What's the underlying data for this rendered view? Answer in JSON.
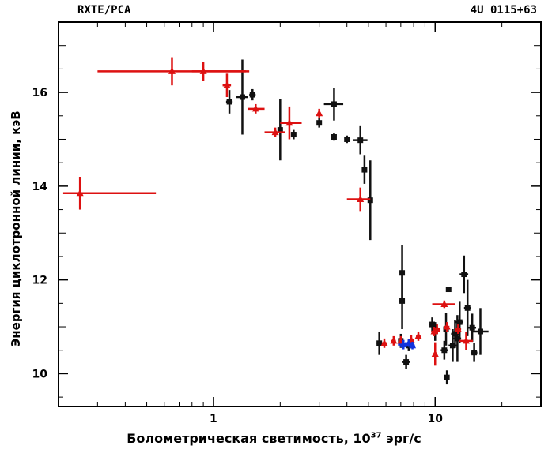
{
  "header": {
    "left": "RXTE/PCA",
    "right": "4U 0115+63"
  },
  "labels": {
    "ylabel": "Энергия циклотронной линии, кэВ",
    "xlabel_prefix": "Болометрическая светимость, 10",
    "xlabel_exp": "37",
    "xlabel_unit": " эрг/с"
  },
  "chart_data": {
    "type": "scatter",
    "x_scale": "log",
    "xlim": [
      0.2,
      30
    ],
    "ylim": [
      9.3,
      17.5
    ],
    "x_ticks": [
      1,
      10
    ],
    "y_ticks": [
      10,
      12,
      14,
      16
    ],
    "xlabel": "Болометрическая светимость, 10^37 эрг/с",
    "ylabel": "Энергия циклотронной линии, кэВ",
    "colors": {
      "black": "#111111",
      "red": "#dd1111",
      "blue": "#1133dd"
    },
    "series": [
      {
        "color": "black",
        "points": [
          {
            "x": 1.18,
            "y": 15.8,
            "xerr": [
              0.04,
              0.04
            ],
            "yerr": 0.25
          },
          {
            "x": 1.35,
            "y": 15.9,
            "xerr": [
              0.08,
              0.08
            ],
            "yerr": 0.8
          },
          {
            "x": 1.5,
            "y": 15.95,
            "xerr": [
              0.05,
              0.05
            ],
            "yerr": 0.12
          },
          {
            "x": 2.0,
            "y": 15.2,
            "xerr": [
              0.05,
              0.05
            ],
            "yerr": 0.65
          },
          {
            "x": 2.3,
            "y": 15.1,
            "xerr": [
              0.06,
              0.06
            ],
            "yerr": 0.1
          },
          {
            "x": 3.0,
            "y": 15.35,
            "xerr": [
              0.05,
              0.05
            ],
            "yerr": 0.1
          },
          {
            "x": 3.5,
            "y": 15.75,
            "xerr": [
              0.35,
              0.35
            ],
            "yerr": 0.35
          },
          {
            "x": 3.5,
            "y": 15.05,
            "xerr": [
              0.05,
              0.05
            ],
            "yerr": 0.08
          },
          {
            "x": 4.0,
            "y": 15.0,
            "xerr": [
              0.05,
              0.05
            ],
            "yerr": 0.08
          },
          {
            "x": 4.6,
            "y": 14.98,
            "xerr": [
              0.35,
              0.35
            ],
            "yerr": 0.3
          },
          {
            "x": 4.8,
            "y": 14.35,
            "xerr": [
              0.05,
              0.05
            ],
            "yerr": 0.3
          },
          {
            "x": 5.1,
            "y": 13.7,
            "xerr": [
              0.05,
              0.05
            ],
            "yerr": 0.85
          },
          {
            "x": 5.6,
            "y": 10.65,
            "xerr": [
              0.15,
              0.15
            ],
            "yerr": 0.25
          },
          {
            "x": 7.1,
            "y": 12.15,
            "xerr": [
              0.15,
              0.15
            ],
            "yerr": 0.6
          },
          {
            "x": 7.1,
            "y": 11.55,
            "xerr": [
              0.2,
              0.2
            ],
            "yerr": 0.6
          },
          {
            "x": 7.0,
            "y": 10.7,
            "xerr": [
              0.15,
              0.15
            ],
            "yerr": 0.15
          },
          {
            "x": 7.4,
            "y": 10.25,
            "xerr": [
              0.3,
              0.3
            ],
            "yerr": 0.15
          },
          {
            "x": 7.6,
            "y": 10.6,
            "xerr": [
              0.2,
              0.2
            ],
            "yerr": 0.12
          },
          {
            "x": 9.7,
            "y": 11.05,
            "xerr": [
              0.3,
              0.3
            ],
            "yerr": 0.15
          },
          {
            "x": 10.0,
            "y": 10.9,
            "xerr": [
              0.15,
              0.15
            ],
            "yerr": 0.2
          },
          {
            "x": 11.0,
            "y": 10.5,
            "xerr": [
              0.4,
              0.4
            ],
            "yerr": 0.2
          },
          {
            "x": 11.2,
            "y": 10.95,
            "xerr": [
              0.3,
              0.3
            ],
            "yerr": 0.35
          },
          {
            "x": 11.3,
            "y": 9.92,
            "xerr": [
              0.3,
              0.3
            ],
            "yerr": 0.15
          },
          {
            "x": 11.5,
            "y": 11.8,
            "xerr": [
              0.15,
              0.15
            ],
            "yerr": 0.05
          },
          {
            "x": 12.0,
            "y": 10.6,
            "xerr": [
              0.5,
              0.5
            ],
            "yerr": 0.35
          },
          {
            "x": 12.3,
            "y": 10.85,
            "xerr": [
              0.5,
              0.5
            ],
            "yerr": 0.3
          },
          {
            "x": 12.6,
            "y": 10.75,
            "xerr": [
              0.5,
              0.5
            ],
            "yerr": 0.5
          },
          {
            "x": 12.9,
            "y": 11.1,
            "xerr": [
              0.5,
              0.5
            ],
            "yerr": 0.45
          },
          {
            "x": 13.5,
            "y": 12.12,
            "xerr": [
              0.6,
              0.6
            ],
            "yerr": 0.4
          },
          {
            "x": 14.0,
            "y": 11.4,
            "xerr": [
              0.5,
              0.5
            ],
            "yerr": 0.6
          },
          {
            "x": 14.7,
            "y": 10.98,
            "xerr": [
              0.6,
              0.6
            ],
            "yerr": 0.3
          },
          {
            "x": 15.0,
            "y": 10.45,
            "xerr": [
              0.5,
              0.5
            ],
            "yerr": 0.2
          },
          {
            "x": 16.0,
            "y": 10.9,
            "xerr": [
              1.4,
              1.4
            ],
            "yerr": 0.5
          }
        ]
      },
      {
        "color": "red",
        "points": [
          {
            "x": 0.25,
            "y": 13.85,
            "xerr": [
              0.04,
              0.3
            ],
            "yerr": 0.35
          },
          {
            "x": 0.65,
            "y": 16.45,
            "xerr": [
              0.35,
              0.8
            ],
            "yerr": 0.3
          },
          {
            "x": 0.9,
            "y": 16.45,
            "xerr": [
              0.1,
              0.5
            ],
            "yerr": 0.2
          },
          {
            "x": 1.15,
            "y": 16.15,
            "xerr": [
              0.05,
              0.05
            ],
            "yerr": 0.25
          },
          {
            "x": 1.55,
            "y": 15.65,
            "xerr": [
              0.12,
              0.15
            ],
            "yerr": 0.1
          },
          {
            "x": 1.9,
            "y": 15.15,
            "xerr": [
              0.2,
              0.2
            ],
            "yerr": 0.1
          },
          {
            "x": 2.2,
            "y": 15.35,
            "xerr": [
              0.2,
              0.3
            ],
            "yerr": 0.35
          },
          {
            "x": 3.0,
            "y": 15.55,
            "xerr": [
              0.05,
              0.05
            ],
            "yerr": 0.1
          },
          {
            "x": 4.6,
            "y": 13.72,
            "xerr": [
              0.6,
              0.5
            ],
            "yerr": 0.25
          },
          {
            "x": 5.9,
            "y": 10.65,
            "xerr": [
              0.15,
              0.15
            ],
            "yerr": 0.1
          },
          {
            "x": 6.5,
            "y": 10.7,
            "xerr": [
              0.15,
              0.15
            ],
            "yerr": 0.1
          },
          {
            "x": 7.0,
            "y": 10.7,
            "xerr": [
              0.15,
              0.15
            ],
            "yerr": 0.1
          },
          {
            "x": 7.8,
            "y": 10.72,
            "xerr": [
              0.2,
              0.2
            ],
            "yerr": 0.1
          },
          {
            "x": 8.4,
            "y": 10.8,
            "xerr": [
              0.2,
              0.2
            ],
            "yerr": 0.1
          },
          {
            "x": 9.9,
            "y": 10.9,
            "xerr": [
              0.3,
              0.3
            ],
            "yerr": 0.1
          },
          {
            "x": 10.2,
            "y": 10.95,
            "xerr": [
              0.3,
              0.3
            ],
            "yerr": 0.1
          },
          {
            "x": 10.0,
            "y": 10.42,
            "xerr": [
              0.15,
              0.15
            ],
            "yerr": 0.25
          },
          {
            "x": 11.0,
            "y": 11.48,
            "xerr": [
              1.3,
              1.3
            ],
            "yerr": 0.08
          },
          {
            "x": 11.3,
            "y": 11.0,
            "xerr": [
              0.3,
              0.3
            ],
            "yerr": 0.1
          },
          {
            "x": 12.7,
            "y": 10.95,
            "xerr": [
              0.4,
              0.4
            ],
            "yerr": 0.1
          },
          {
            "x": 13.8,
            "y": 10.7,
            "xerr": [
              1.0,
              1.0
            ],
            "yerr": 0.2
          }
        ]
      },
      {
        "color": "blue",
        "points": [
          {
            "x": 7.2,
            "y": 10.62,
            "xerr": [
              0.4,
              0.4
            ],
            "yerr": 0.1
          },
          {
            "x": 7.6,
            "y": 10.65,
            "xerr": [
              0.3,
              0.3
            ],
            "yerr": 0.08
          },
          {
            "x": 7.9,
            "y": 10.6,
            "xerr": [
              0.2,
              0.2
            ],
            "yerr": 0.08
          }
        ]
      }
    ]
  }
}
